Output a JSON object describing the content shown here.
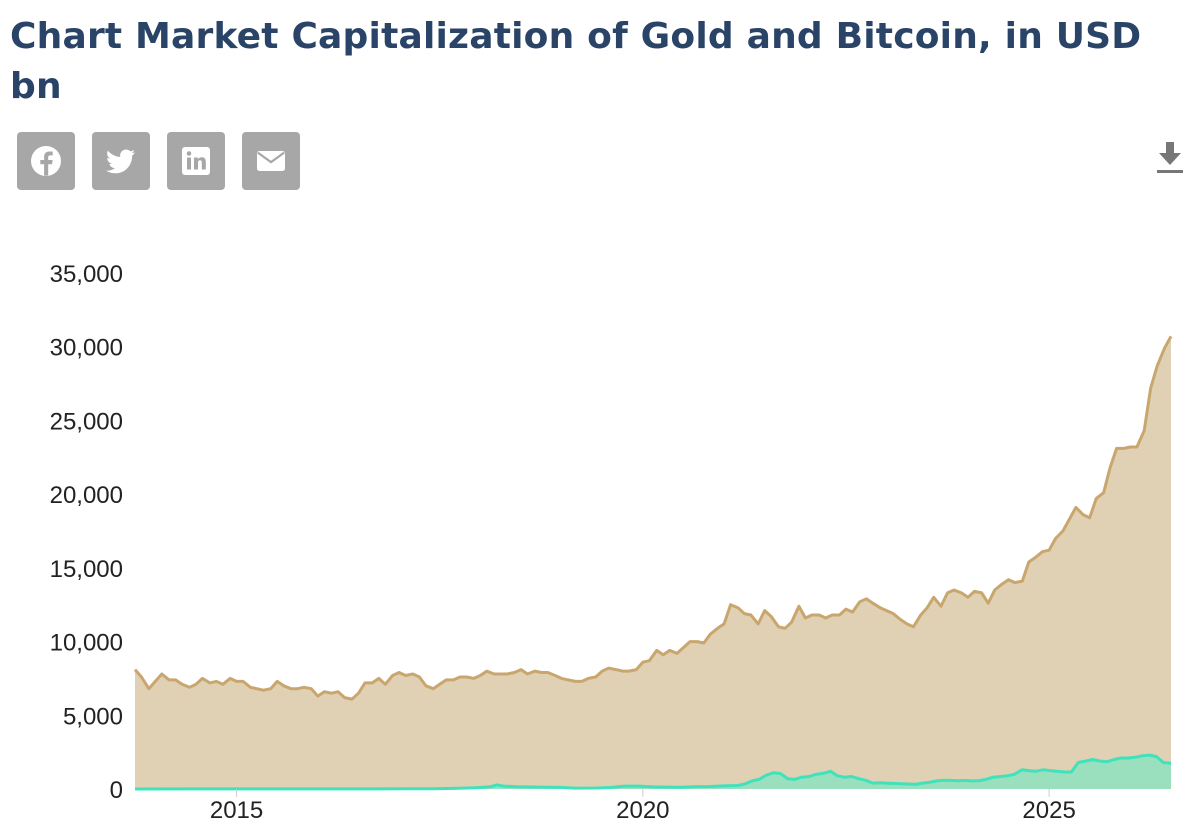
{
  "title": "Chart Market Capitalization of Gold and Bitcoin, in USD bn",
  "share": [
    {
      "name": "facebook",
      "icon": "facebook-icon"
    },
    {
      "name": "twitter",
      "icon": "twitter-icon"
    },
    {
      "name": "linkedin",
      "icon": "linkedin-icon"
    },
    {
      "name": "email",
      "icon": "envelope-icon"
    }
  ],
  "download_icon": "download-icon",
  "colors": {
    "title": "#2a4468",
    "share_bg": "#a7a7a7",
    "gold_fill": "#e0d1b5",
    "gold_line": "#c9a66e",
    "bitcoin_fill": "#9adfbe",
    "bitcoin_line": "#3fe2bb"
  },
  "chart_data": {
    "type": "area",
    "title": "Chart Market Capitalization of Gold and Bitcoin, in USD bn",
    "xlabel": "",
    "ylabel": "",
    "xlim": [
      2013.75,
      2025.92
    ],
    "ylim": [
      0,
      35000
    ],
    "yticks": [
      0,
      5000,
      10000,
      15000,
      20000,
      25000,
      30000,
      35000
    ],
    "ytick_labels": [
      "0",
      "5,000",
      "10,000",
      "15,000",
      "20,000",
      "25,000",
      "30,000",
      "35,000"
    ],
    "xticks": [
      2015,
      2020,
      2025
    ],
    "xtick_labels": [
      "2015",
      "2020",
      "2025"
    ],
    "grid": false,
    "legend": "none",
    "series": [
      {
        "points": [
          [
            2013.75,
            8100
          ],
          [
            2013.83,
            7600
          ],
          [
            2013.92,
            6800
          ],
          [
            2014.0,
            7300
          ],
          [
            2014.08,
            7800
          ],
          [
            2014.17,
            7400
          ],
          [
            2014.25,
            7400
          ],
          [
            2014.33,
            7100
          ],
          [
            2014.42,
            6900
          ],
          [
            2014.5,
            7100
          ],
          [
            2014.58,
            7500
          ],
          [
            2014.67,
            7200
          ],
          [
            2014.75,
            7300
          ],
          [
            2014.83,
            7100
          ],
          [
            2014.92,
            7500
          ],
          [
            2015.0,
            7300
          ],
          [
            2015.08,
            7300
          ],
          [
            2015.17,
            6900
          ],
          [
            2015.25,
            6800
          ],
          [
            2015.33,
            6700
          ],
          [
            2015.42,
            6800
          ],
          [
            2015.5,
            7300
          ],
          [
            2015.58,
            7000
          ],
          [
            2015.67,
            6800
          ],
          [
            2015.75,
            6800
          ],
          [
            2015.83,
            6900
          ],
          [
            2015.92,
            6800
          ],
          [
            2016.0,
            6300
          ],
          [
            2016.08,
            6600
          ],
          [
            2016.17,
            6500
          ],
          [
            2016.25,
            6600
          ],
          [
            2016.33,
            6200
          ],
          [
            2016.42,
            6100
          ],
          [
            2016.5,
            6500
          ],
          [
            2016.58,
            7200
          ],
          [
            2016.67,
            7200
          ],
          [
            2016.75,
            7500
          ],
          [
            2016.83,
            7100
          ],
          [
            2016.92,
            7700
          ],
          [
            2017.0,
            7900
          ],
          [
            2017.08,
            7700
          ],
          [
            2017.17,
            7800
          ],
          [
            2017.25,
            7600
          ],
          [
            2017.33,
            7000
          ],
          [
            2017.42,
            6800
          ],
          [
            2017.5,
            7100
          ],
          [
            2017.58,
            7400
          ],
          [
            2017.67,
            7400
          ],
          [
            2017.75,
            7600
          ],
          [
            2017.83,
            7600
          ],
          [
            2017.92,
            7500
          ],
          [
            2018.0,
            7700
          ],
          [
            2018.08,
            8000
          ],
          [
            2018.17,
            7800
          ],
          [
            2018.25,
            7800
          ],
          [
            2018.33,
            7800
          ],
          [
            2018.42,
            7900
          ],
          [
            2018.5,
            8100
          ],
          [
            2018.58,
            7800
          ],
          [
            2018.67,
            8000
          ],
          [
            2018.75,
            7900
          ],
          [
            2018.83,
            7900
          ],
          [
            2018.92,
            7700
          ],
          [
            2019.0,
            7500
          ],
          [
            2019.08,
            7400
          ],
          [
            2019.17,
            7300
          ],
          [
            2019.25,
            7300
          ],
          [
            2019.33,
            7500
          ],
          [
            2019.42,
            7600
          ],
          [
            2019.5,
            8000
          ],
          [
            2019.58,
            8200
          ],
          [
            2019.67,
            8100
          ],
          [
            2019.75,
            8000
          ],
          [
            2019.83,
            8000
          ],
          [
            2019.92,
            8100
          ],
          [
            2020.0,
            8600
          ],
          [
            2020.08,
            8700
          ],
          [
            2020.17,
            9400
          ],
          [
            2020.25,
            9100
          ],
          [
            2020.33,
            9400
          ],
          [
            2020.42,
            9200
          ],
          [
            2020.5,
            9600
          ],
          [
            2020.58,
            10000
          ],
          [
            2020.67,
            10000
          ],
          [
            2020.75,
            9900
          ],
          [
            2020.83,
            10500
          ],
          [
            2020.92,
            10900
          ],
          [
            2021.0,
            11200
          ],
          [
            2021.08,
            12500
          ],
          [
            2021.17,
            12300
          ],
          [
            2021.25,
            11900
          ],
          [
            2021.33,
            11800
          ],
          [
            2021.42,
            11200
          ],
          [
            2021.5,
            12100
          ],
          [
            2021.58,
            11700
          ],
          [
            2021.67,
            11000
          ],
          [
            2021.75,
            10900
          ],
          [
            2021.83,
            11300
          ],
          [
            2021.92,
            12400
          ],
          [
            2022.0,
            11600
          ],
          [
            2022.08,
            11800
          ],
          [
            2022.17,
            11800
          ],
          [
            2022.25,
            11600
          ],
          [
            2022.33,
            11800
          ],
          [
            2022.42,
            11800
          ],
          [
            2022.5,
            12200
          ],
          [
            2022.58,
            12000
          ],
          [
            2022.67,
            12700
          ],
          [
            2022.75,
            12900
          ],
          [
            2022.83,
            12600
          ],
          [
            2022.92,
            12300
          ],
          [
            2023.0,
            12100
          ],
          [
            2023.08,
            11900
          ],
          [
            2023.17,
            11500
          ],
          [
            2023.25,
            11200
          ],
          [
            2023.33,
            11000
          ],
          [
            2023.42,
            11800
          ],
          [
            2023.5,
            12300
          ],
          [
            2023.58,
            13000
          ],
          [
            2023.67,
            12400
          ],
          [
            2023.75,
            13300
          ],
          [
            2023.83,
            13500
          ],
          [
            2023.92,
            13300
          ],
          [
            2024.0,
            13000
          ],
          [
            2024.08,
            13400
          ],
          [
            2024.17,
            13300
          ],
          [
            2024.25,
            12600
          ],
          [
            2024.33,
            13500
          ],
          [
            2024.42,
            13900
          ],
          [
            2024.5,
            14200
          ],
          [
            2024.58,
            14000
          ],
          [
            2024.67,
            14100
          ],
          [
            2024.75,
            15400
          ],
          [
            2024.83,
            15700
          ],
          [
            2024.92,
            16100
          ],
          [
            2025.0,
            16200
          ],
          [
            2025.08,
            17000
          ],
          [
            2025.17,
            17500
          ],
          [
            2025.25,
            18300
          ],
          [
            2025.33,
            19100
          ],
          [
            2025.42,
            18600
          ],
          [
            2025.5,
            18400
          ],
          [
            2025.58,
            19700
          ],
          [
            2025.67,
            20100
          ],
          [
            2025.75,
            21800
          ],
          [
            2025.83,
            23100
          ],
          [
            2025.92,
            23100
          ]
        ],
        "tail_points": [
          [
            2025.92,
            23100
          ],
          [
            2026.0,
            23200
          ],
          [
            2026.08,
            23200
          ],
          [
            2026.17,
            24300
          ],
          [
            2026.25,
            27200
          ],
          [
            2026.33,
            28700
          ],
          [
            2026.42,
            29900
          ],
          [
            2026.5,
            30700
          ]
        ]
      },
      {
        "points": [
          [
            2013.75,
            2
          ],
          [
            2014.5,
            5
          ],
          [
            2015.0,
            4
          ],
          [
            2015.5,
            4
          ],
          [
            2016.0,
            6
          ],
          [
            2016.5,
            10
          ],
          [
            2016.92,
            15
          ],
          [
            2017.25,
            20
          ],
          [
            2017.5,
            40
          ],
          [
            2017.75,
            80
          ],
          [
            2017.92,
            150
          ],
          [
            2018.0,
            280
          ],
          [
            2018.08,
            200
          ],
          [
            2018.25,
            150
          ],
          [
            2018.5,
            130
          ],
          [
            2018.75,
            110
          ],
          [
            2018.92,
            60
          ],
          [
            2019.17,
            70
          ],
          [
            2019.33,
            100
          ],
          [
            2019.5,
            200
          ],
          [
            2019.67,
            200
          ],
          [
            2019.83,
            140
          ],
          [
            2020.0,
            130
          ],
          [
            2020.17,
            120
          ],
          [
            2020.33,
            160
          ],
          [
            2020.5,
            170
          ],
          [
            2020.67,
            210
          ],
          [
            2020.83,
            240
          ],
          [
            2020.92,
            350
          ],
          [
            2021.0,
            550
          ],
          [
            2021.08,
            650
          ],
          [
            2021.17,
            950
          ],
          [
            2021.25,
            1100
          ],
          [
            2021.33,
            1050
          ],
          [
            2021.42,
            700
          ],
          [
            2021.5,
            650
          ],
          [
            2021.58,
            800
          ],
          [
            2021.67,
            850
          ],
          [
            2021.75,
            1000
          ],
          [
            2021.83,
            1050
          ],
          [
            2021.92,
            1200
          ],
          [
            2022.0,
            900
          ],
          [
            2022.08,
            800
          ],
          [
            2022.17,
            850
          ],
          [
            2022.25,
            700
          ],
          [
            2022.33,
            600
          ],
          [
            2022.42,
            400
          ],
          [
            2022.5,
            420
          ],
          [
            2022.58,
            400
          ],
          [
            2022.67,
            380
          ],
          [
            2022.75,
            360
          ],
          [
            2022.83,
            340
          ],
          [
            2022.92,
            320
          ],
          [
            2023.0,
            400
          ],
          [
            2023.08,
            450
          ],
          [
            2023.17,
            550
          ],
          [
            2023.25,
            600
          ],
          [
            2023.33,
            580
          ],
          [
            2023.42,
            560
          ],
          [
            2023.5,
            580
          ],
          [
            2023.58,
            550
          ],
          [
            2023.67,
            570
          ],
          [
            2023.75,
            660
          ],
          [
            2023.83,
            800
          ],
          [
            2023.92,
            850
          ],
          [
            2024.0,
            900
          ],
          [
            2024.08,
            1000
          ],
          [
            2024.17,
            1300
          ],
          [
            2024.25,
            1250
          ],
          [
            2024.33,
            1200
          ],
          [
            2024.42,
            1300
          ],
          [
            2024.5,
            1250
          ],
          [
            2024.58,
            1200
          ],
          [
            2024.67,
            1150
          ],
          [
            2024.75,
            1150
          ],
          [
            2024.83,
            1800
          ],
          [
            2024.92,
            1900
          ],
          [
            2025.0,
            2000
          ],
          [
            2025.08,
            1900
          ],
          [
            2025.17,
            1850
          ],
          [
            2025.25,
            2000
          ],
          [
            2025.33,
            2100
          ],
          [
            2025.42,
            2100
          ],
          [
            2025.5,
            2150
          ],
          [
            2025.58,
            2250
          ],
          [
            2025.67,
            2300
          ],
          [
            2025.75,
            2200
          ],
          [
            2025.83,
            1800
          ],
          [
            2025.92,
            1750
          ]
        ]
      }
    ]
  }
}
